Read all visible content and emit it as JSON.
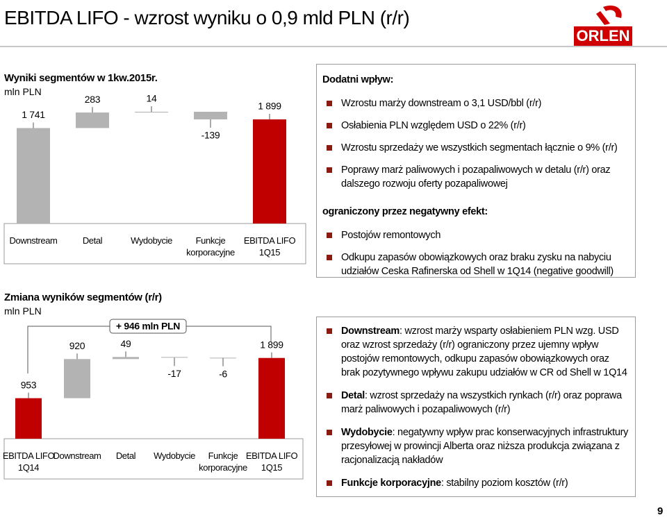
{
  "header": {
    "title": "EBITDA LIFO - wzrost wyniku o 0,9 mld PLN (r/r)",
    "logo": "ORLEN"
  },
  "chart_data": [
    {
      "type": "waterfall",
      "title": "Wyniki segmentów w 1kw.2015r.",
      "subtitle": "mln PLN",
      "categories": [
        "Downstream",
        "Detal",
        "Wydobycie",
        "Funkcje korporacyjne",
        "EBITDA LIFO 1Q15"
      ],
      "values": [
        1741,
        283,
        14,
        -139,
        1899
      ],
      "value_labels": [
        "1 741",
        "283",
        "14",
        "-139",
        "1 899"
      ],
      "measures": [
        "absolute",
        "relative",
        "relative",
        "relative",
        "total"
      ],
      "colors": [
        "#b3b3b3",
        "#b3b3b3",
        "#b3b3b3",
        "#b3b3b3",
        "#c00000"
      ],
      "ylim": [
        0,
        2000
      ]
    },
    {
      "type": "waterfall",
      "title": "Zmiana wyników segmentów (r/r)",
      "subtitle": "mln PLN",
      "categories": [
        "EBITDA LIFO 1Q14",
        "Downstream",
        "Detal",
        "Wydobycie",
        "Funkcje korporacyjne",
        "EBITDA LIFO 1Q15"
      ],
      "values": [
        953,
        920,
        49,
        -17,
        -6,
        1899
      ],
      "value_labels": [
        "953",
        "920",
        "49",
        "-17",
        "-6",
        "1 899"
      ],
      "measures": [
        "absolute",
        "relative",
        "relative",
        "relative",
        "relative",
        "total"
      ],
      "colors": [
        "#c00000",
        "#b3b3b3",
        "#b3b3b3",
        "#b3b3b3",
        "#b3b3b3",
        "#c00000"
      ],
      "ylim": [
        0,
        2400
      ],
      "annotation": "+ 946 mln PLN"
    }
  ],
  "positive_box": {
    "heading": "Dodatni wpływ:",
    "items": [
      "Wzrostu marży downstream o 3,1 USD/bbl (r/r)",
      "Osłabienia PLN względem USD o 22% (r/r)",
      "Wzrostu sprzedaży we wszystkich segmentach łącznie o 9% (r/r)",
      "Poprawy marż paliwowych i pozapaliwowych w detalu (r/r) oraz dalszego rozwoju oferty pozapaliwowej"
    ],
    "negative_heading": "ograniczony przez negatywny efekt:",
    "negative_items": [
      "Postojów remontowych",
      "Odkupu zapasów obowiązkowych oraz braku zysku na nabyciu udziałów Ceska Rafinerska od Shell w 1Q14 (negative goodwill)"
    ]
  },
  "comments": [
    {
      "label": "Downstream",
      "text": ": wzrost marży wsparty osłabieniem PLN wzg. USD oraz wzrost sprzedaży (r/r) ograniczony przez ujemny wpływ postojów remontowych, odkupu zapasów obowiązkowych oraz brak pozytywnego wpływu zakupu udziałów w CR od Shell w 1Q14"
    },
    {
      "label": "Detal",
      "text": ": wzrost sprzedaży na wszystkich rynkach (r/r) oraz poprawa marż paliwowych i pozapaliwowych (r/r)"
    },
    {
      "label": "Wydobycie",
      "text": ": negatywny wpływ prac konserwacyjnych infrastruktury przesyłowej w prowincji Alberta oraz niższa produkcja związana z racjonalizacją nakładów"
    },
    {
      "label": "Funkcje korporacyjne",
      "text": ": stabilny poziom kosztów (r/r)"
    }
  ],
  "page_number": 9
}
